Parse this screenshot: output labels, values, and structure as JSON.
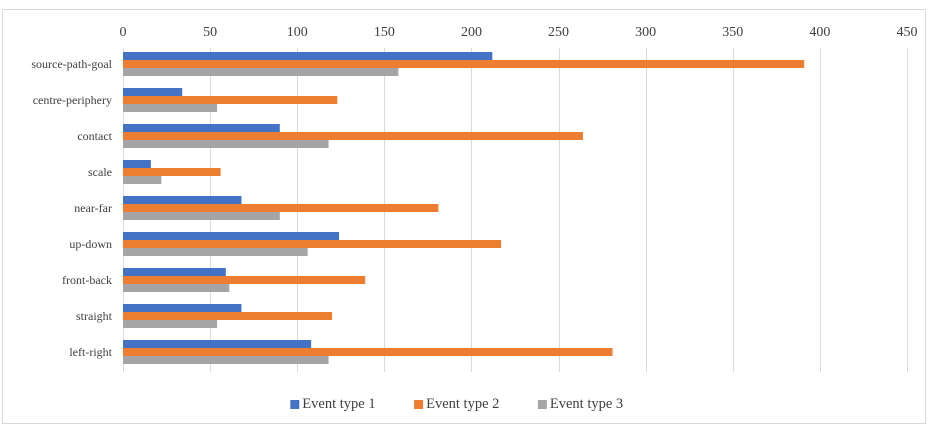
{
  "chart_data": {
    "type": "bar",
    "orientation": "horizontal",
    "categories": [
      "source-path-goal",
      "centre-periphery",
      "contact",
      "scale",
      "near-far",
      "up-down",
      "front-back",
      "straight",
      "left-right"
    ],
    "series": [
      {
        "name": "Event type 1",
        "color": "#4472c4",
        "values": [
          212,
          34,
          90,
          16,
          68,
          124,
          59,
          68,
          108
        ]
      },
      {
        "name": "Event type 2",
        "color": "#ed7d31",
        "values": [
          391,
          123,
          264,
          56,
          181,
          217,
          139,
          120,
          281
        ]
      },
      {
        "name": "Event type 3",
        "color": "#a5a5a5",
        "values": [
          158,
          54,
          118,
          22,
          90,
          106,
          61,
          54,
          118
        ]
      }
    ],
    "xlim": [
      0,
      450
    ],
    "xticks": [
      0,
      50,
      100,
      150,
      200,
      250,
      300,
      350,
      400,
      450
    ],
    "x_axis_position": "top",
    "grid": true,
    "legend_position": "bottom"
  }
}
